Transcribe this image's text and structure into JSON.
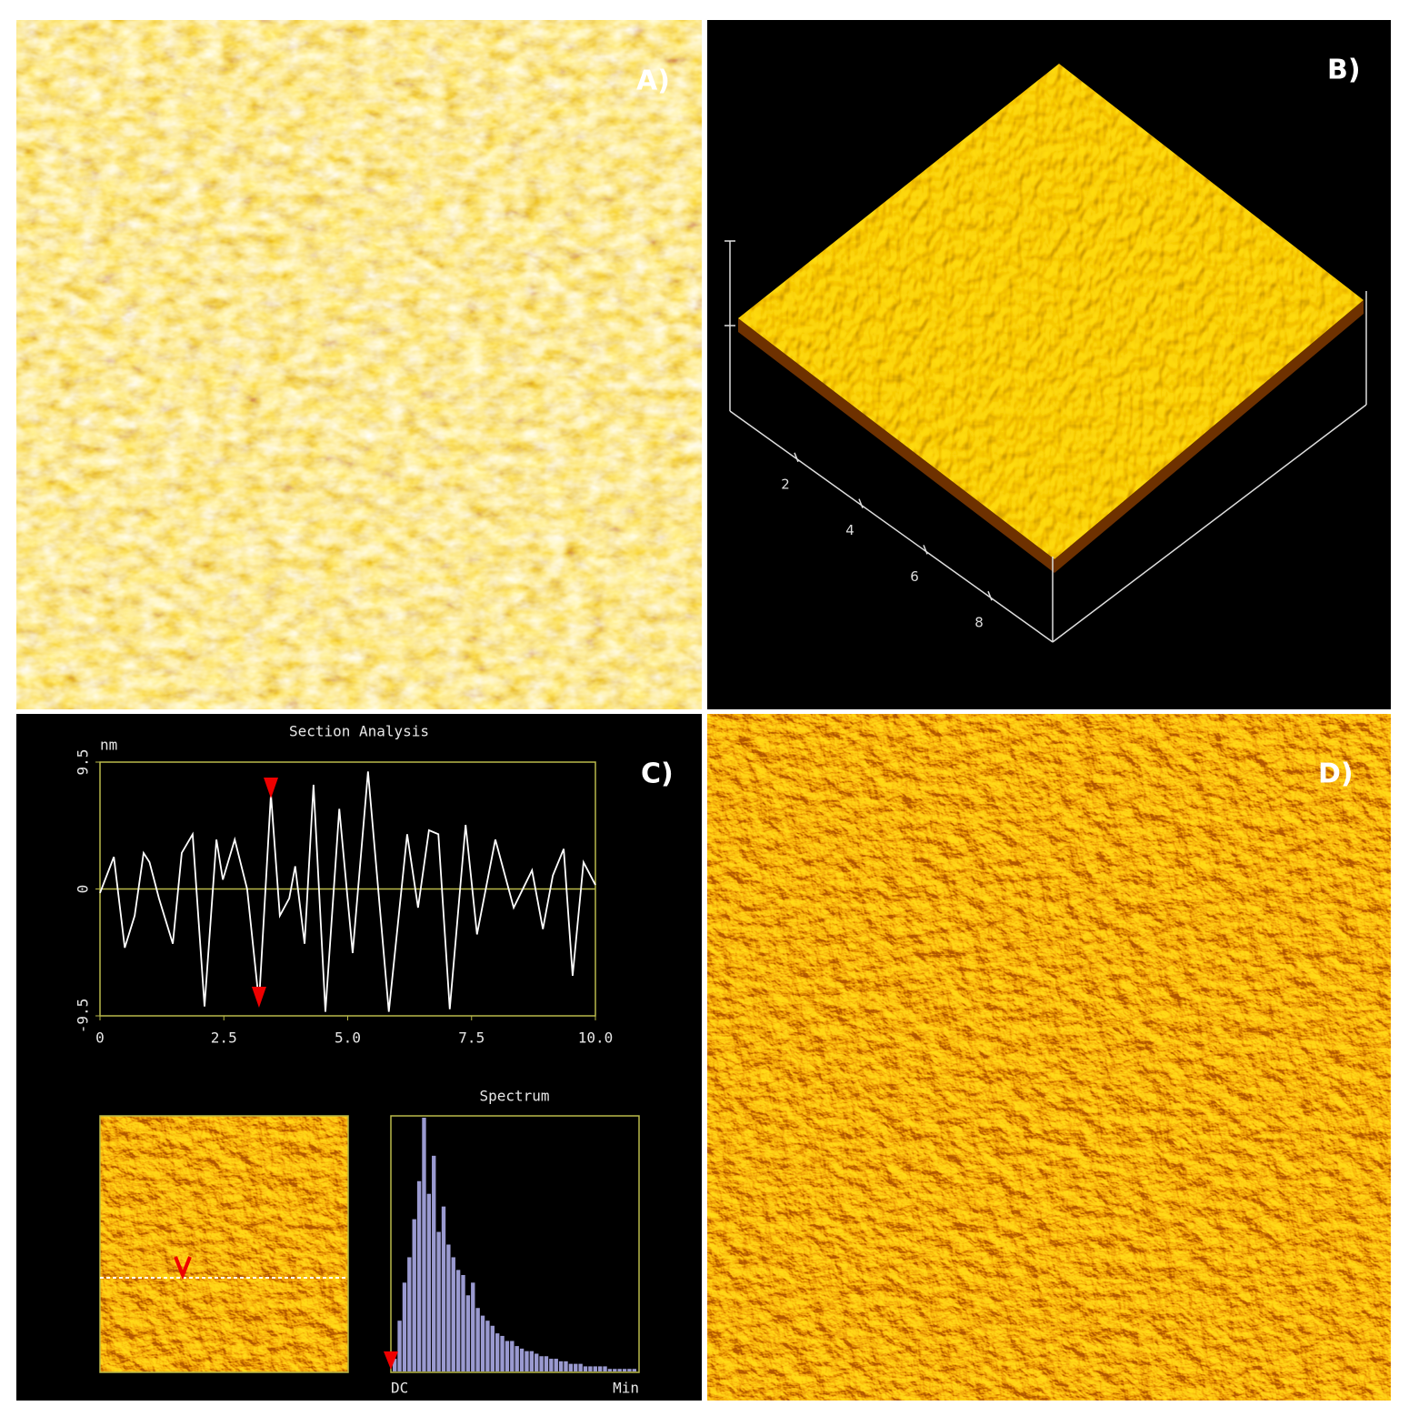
{
  "panels": {
    "a": {
      "label": "A)"
    },
    "b": {
      "label": "B)",
      "axis_labels": [
        "2",
        "4",
        "6",
        "8"
      ]
    },
    "c": {
      "label": "C)"
    },
    "d": {
      "label": "D)"
    }
  },
  "chart_data": {
    "type": "line",
    "title": "Section Analysis",
    "y_unit": "nm",
    "color": "#ffffff",
    "x": [
      0,
      0.28,
      0.5,
      0.7,
      0.88,
      1.0,
      1.19,
      1.47,
      1.65,
      1.87,
      2.11,
      2.35,
      2.48,
      2.72,
      2.97,
      3.21,
      3.45,
      3.63,
      3.82,
      3.94,
      4.13,
      4.31,
      4.55,
      4.83,
      5.1,
      5.41,
      5.83,
      6.2,
      6.42,
      6.64,
      6.83,
      7.06,
      7.38,
      7.61,
      7.98,
      8.35,
      8.72,
      8.94,
      9.14,
      9.36,
      9.54,
      9.76,
      10.0
    ],
    "values": [
      -0.3,
      2.4,
      -4.4,
      -2,
      2.7,
      2,
      -0.7,
      -4.1,
      2.7,
      4.1,
      -8.8,
      3.7,
      0.7,
      3.7,
      0,
      -8.5,
      7.1,
      -2,
      -0.7,
      1.7,
      -4.1,
      7.8,
      -9.2,
      6.0,
      -4.8,
      8.8,
      -9.2,
      4.1,
      -1.4,
      4.4,
      4.1,
      -9,
      4.8,
      -3.4,
      3.7,
      -1.4,
      1.4,
      -3,
      1,
      3,
      -6.5,
      2,
      0.3
    ],
    "markers_x": [
      3.45,
      3.21
    ],
    "xlim": [
      0,
      10
    ],
    "ylim": [
      -9.5,
      9.5
    ],
    "xticks": [
      0,
      2.5,
      {
        "value": 5,
        "label": "5.0"
      },
      7.5,
      {
        "value": 10,
        "label": "10.0"
      }
    ],
    "yticks": [
      -9.5,
      0,
      9.5
    ]
  },
  "spectrum": {
    "title": "Spectrum",
    "x_labels": [
      "DC",
      "Min"
    ],
    "color": "#9a9ad0",
    "ylim": [
      0,
      100
    ],
    "values": [
      5,
      20,
      35,
      45,
      60,
      75,
      100,
      70,
      85,
      55,
      65,
      50,
      45,
      40,
      38,
      30,
      35,
      25,
      22,
      20,
      18,
      15,
      14,
      12,
      12,
      10,
      9,
      8,
      8,
      7,
      6,
      6,
      5,
      5,
      4,
      4,
      3,
      3,
      3,
      2,
      2,
      2,
      2,
      2,
      1,
      1,
      1,
      1,
      1,
      1
    ]
  }
}
